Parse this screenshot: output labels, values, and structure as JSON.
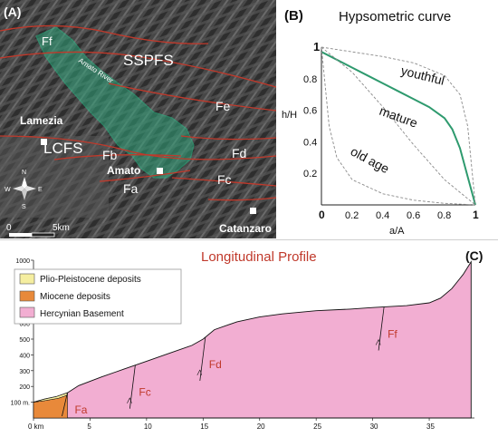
{
  "panel_a": {
    "tag": "(A)",
    "labels": {
      "ff": "Ff",
      "sspfs": "SSPFS",
      "river": "Amato River",
      "fe": "Fe",
      "lamezia": "Lamezia",
      "lcfs": "LCFS",
      "fb": "Fb",
      "fd": "Fd",
      "amato": "Amato",
      "fc": "Fc",
      "fa": "Fa",
      "catanzaro": "Catanzaro"
    },
    "scale": {
      "zero": "0",
      "distance": "5km"
    },
    "compass": {
      "n": "N",
      "s": "S",
      "e": "E",
      "w": "W"
    },
    "colors": {
      "basin": "#2fa37a",
      "faults": "#c0392b",
      "relief": "#4a4a4a"
    }
  },
  "panel_b": {
    "tag": "(B)",
    "title": "Hypsometric curve",
    "ylabel": "h/H",
    "xlabel": "a/A",
    "curve_labels": {
      "youthful": "youthful",
      "mature": "mature",
      "old_age": "old age"
    },
    "colors": {
      "basin_curve": "#2e9a6e",
      "reference": "#8a8a8a"
    }
  },
  "panel_c": {
    "tag": "(C)",
    "title": "Longitudinal Profile",
    "unit_label": "0 km",
    "y_unit": "100 m.",
    "legend": [
      {
        "label": "Plio-Pleistocene deposits",
        "color": "#f5eea0"
      },
      {
        "label": "Miocene deposits",
        "color": "#e8893a"
      },
      {
        "label": "Hercynian Basement",
        "color": "#f2aed2"
      }
    ],
    "fault_labels": {
      "fa": "Fa",
      "fc": "Fc",
      "fd": "Fd",
      "ff": "Ff"
    },
    "colors": {
      "title": "#c0392b",
      "fault_labels": "#c0392b"
    }
  },
  "chart_data": [
    {
      "type": "line",
      "title": "Hypsometric curve",
      "xlabel": "a/A",
      "ylabel": "h/H",
      "xlim": [
        0,
        1
      ],
      "ylim": [
        0,
        1
      ],
      "x_ticks": [
        "0",
        "0.2",
        "0.4",
        "0.6",
        "0.8",
        "1"
      ],
      "y_ticks": [
        "0",
        "0.2",
        "0.4",
        "0.6",
        "0.8",
        "1"
      ],
      "series": [
        {
          "x": [
            0,
            0.1,
            0.2,
            0.3,
            0.4,
            0.5,
            0.6,
            0.7,
            0.8,
            0.85,
            0.9,
            0.95,
            1.0
          ],
          "values": [
            0.97,
            0.92,
            0.87,
            0.82,
            0.77,
            0.72,
            0.67,
            0.62,
            0.55,
            0.48,
            0.36,
            0.18,
            0.0
          ]
        },
        {
          "name": "youthful",
          "x": [
            0,
            0.2,
            0.4,
            0.6,
            0.8,
            0.9,
            0.95,
            1.0
          ],
          "values": [
            1.0,
            0.97,
            0.94,
            0.9,
            0.82,
            0.7,
            0.5,
            0.0
          ]
        },
        {
          "name": "mature",
          "x": [
            0,
            0.2,
            0.4,
            0.6,
            0.8,
            1.0
          ],
          "values": [
            1.0,
            0.84,
            0.62,
            0.38,
            0.16,
            0.0
          ]
        },
        {
          "name": "old age",
          "x": [
            0,
            0.05,
            0.1,
            0.2,
            0.4,
            0.6,
            0.8,
            1.0
          ],
          "values": [
            1.0,
            0.5,
            0.3,
            0.16,
            0.07,
            0.03,
            0.01,
            0.0
          ]
        }
      ]
    },
    {
      "type": "area",
      "title": "Longitudinal Profile",
      "xlim": [
        0,
        39
      ],
      "ylim": [
        0,
        1000
      ],
      "x_ticks": [
        "0 km",
        "5",
        "10",
        "15",
        "20",
        "25",
        "30",
        "35"
      ],
      "y_ticks": [
        "100 m.",
        "200",
        "300",
        "400",
        "500",
        "600",
        "700",
        "800",
        "900",
        "1000"
      ],
      "profile": {
        "x": [
          0,
          1,
          2,
          3,
          4,
          6,
          8,
          10,
          12,
          14,
          15,
          16,
          18,
          20,
          22,
          25,
          28,
          30,
          33,
          35,
          36,
          37,
          38,
          38.7
        ],
        "values": [
          100,
          120,
          135,
          160,
          205,
          260,
          310,
          360,
          410,
          460,
          500,
          560,
          610,
          640,
          660,
          680,
          690,
          700,
          712,
          730,
          760,
          820,
          910,
          990
        ]
      },
      "faults": [
        {
          "label": "Fa",
          "x": 3.0
        },
        {
          "label": "Fc",
          "x": 9.0
        },
        {
          "label": "Fd",
          "x": 15.2
        },
        {
          "label": "Ff",
          "x": 31.0
        }
      ]
    }
  ]
}
